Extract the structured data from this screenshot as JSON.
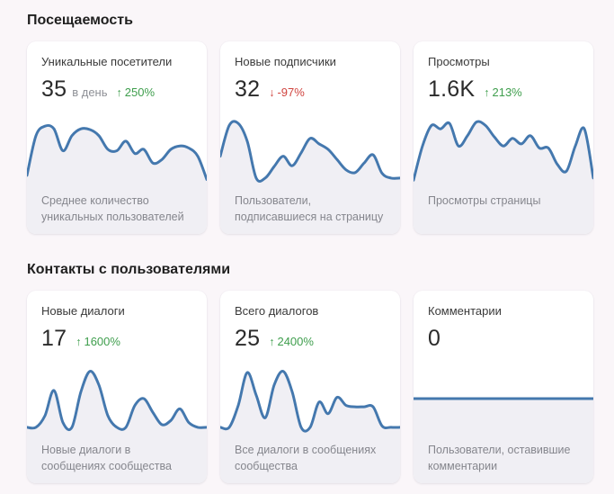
{
  "page": {
    "background": "#faf6f9"
  },
  "colors": {
    "chart_line": "#4478ae",
    "chart_fill": "#f0eff4",
    "positive": "#3f9e4d",
    "negative": "#d0443f"
  },
  "sections": [
    {
      "title": "Посещаемость",
      "cards": [
        {
          "title": "Уникальные посетители",
          "value": "35",
          "unit": "в день",
          "arrow": "↑",
          "delta": "250%",
          "description": "Среднее количество уникальных пользователей"
        },
        {
          "title": "Новые подписчики",
          "value": "32",
          "arrow": "↓",
          "delta": "-97%",
          "description": "Пользователи, подписавшиеся на страницу"
        },
        {
          "title": "Просмотры",
          "value": "1.6K",
          "arrow": "↑",
          "delta": "213%",
          "description": "Просмотры страницы"
        }
      ]
    },
    {
      "title": "Контакты с пользователями",
      "cards": [
        {
          "title": "Новые диалоги",
          "value": "17",
          "arrow": "↑",
          "delta": "1600%",
          "description": "Новые диалоги в сообщениях сообщества"
        },
        {
          "title": "Всего диалогов",
          "value": "25",
          "arrow": "↑",
          "delta": "2400%",
          "description": "Все диалоги в сообщениях сообщества"
        },
        {
          "title": "Комментарии",
          "value": "0",
          "description": "Пользователи, оставившие комментарии"
        }
      ]
    }
  ],
  "chart_data": [
    {
      "type": "area",
      "title": "Уникальные посетители",
      "axes": "hidden",
      "y_scale": "normalized 0-100",
      "values": [
        12,
        70,
        84,
        80,
        48,
        70,
        80,
        79,
        70,
        50,
        48,
        62,
        44,
        50,
        30,
        35,
        50,
        55,
        52,
        40,
        6
      ]
    },
    {
      "type": "area",
      "title": "Новые подписчики",
      "axes": "hidden",
      "y_scale": "normalized 0-100",
      "values": [
        40,
        85,
        88,
        62,
        8,
        8,
        25,
        40,
        26,
        45,
        66,
        58,
        50,
        35,
        20,
        16,
        30,
        42,
        15,
        8,
        8
      ]
    },
    {
      "type": "area",
      "title": "Просмотры",
      "axes": "hidden",
      "y_scale": "normalized 0-100",
      "values": [
        5,
        55,
        85,
        80,
        88,
        55,
        70,
        90,
        85,
        68,
        55,
        66,
        58,
        70,
        52,
        52,
        28,
        18,
        55,
        80,
        8
      ]
    },
    {
      "type": "area",
      "title": "Новые диалоги",
      "axes": "hidden",
      "y_scale": "normalized 0-100",
      "values": [
        8,
        8,
        25,
        62,
        15,
        8,
        60,
        90,
        70,
        25,
        8,
        8,
        40,
        50,
        30,
        12,
        18,
        35,
        15,
        8,
        8
      ]
    },
    {
      "type": "area",
      "title": "Всего диалогов",
      "axes": "hidden",
      "y_scale": "normalized 0-100",
      "values": [
        8,
        8,
        40,
        88,
        55,
        22,
        70,
        90,
        60,
        8,
        8,
        45,
        28,
        52,
        40,
        38,
        38,
        38,
        10,
        8,
        8
      ]
    },
    {
      "type": "area",
      "title": "Комментарии",
      "axes": "hidden",
      "y_scale": "normalized 0-100",
      "values": [
        50,
        50
      ]
    }
  ]
}
